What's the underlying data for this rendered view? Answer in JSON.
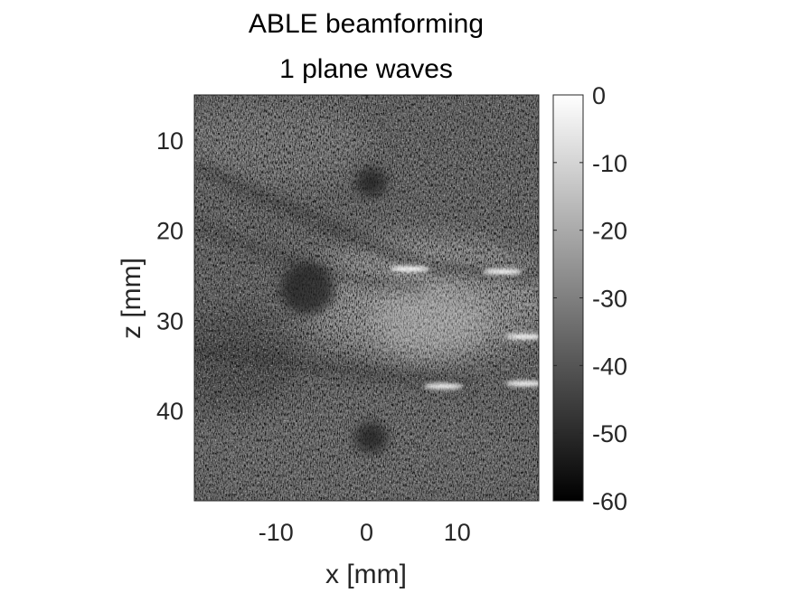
{
  "chart_data": {
    "type": "heatmap",
    "title_lines": [
      "ABLE beamforming",
      "1 plane waves"
    ],
    "xlabel": "x [mm]",
    "ylabel": "z [mm]",
    "xlim": [
      -19,
      19
    ],
    "ylim": [
      5,
      50
    ],
    "y_reversed": true,
    "x_ticks": [
      -10,
      0,
      10
    ],
    "y_ticks": [
      10,
      20,
      30,
      40
    ],
    "x_tick_labels": [
      "-10",
      "0",
      "10"
    ],
    "y_tick_labels": [
      "10",
      "20",
      "30",
      "40"
    ],
    "colormap": "gray",
    "colorbar": {
      "range": [
        -60,
        0
      ],
      "ticks": [
        0,
        -10,
        -20,
        -30,
        -40,
        -50,
        -60
      ],
      "tick_labels": [
        "0",
        "-10",
        "-20",
        "-30",
        "-40",
        "-50",
        "-60"
      ],
      "placement": "right"
    },
    "features": [
      {
        "kind": "hypoechoic-cyst",
        "x": 0.5,
        "z": 14.7,
        "r": 1.7
      },
      {
        "kind": "hypoechoic-cyst",
        "x": -6.5,
        "z": 26.5,
        "r": 3.0
      },
      {
        "kind": "hypoechoic-cyst",
        "x": 0.5,
        "z": 43.0,
        "r": 1.8
      },
      {
        "kind": "hyperechoic-region",
        "x": 7.0,
        "z": 30.0,
        "r": 6.5
      },
      {
        "kind": "bright-reflector",
        "x": 15.0,
        "z": 24.6
      },
      {
        "kind": "bright-reflector",
        "x": 4.8,
        "z": 24.3
      },
      {
        "kind": "bright-reflector",
        "x": 17.5,
        "z": 31.8
      },
      {
        "kind": "bright-reflector",
        "x": 8.5,
        "z": 37.3
      },
      {
        "kind": "bright-reflector",
        "x": 17.5,
        "z": 37.0
      }
    ]
  }
}
